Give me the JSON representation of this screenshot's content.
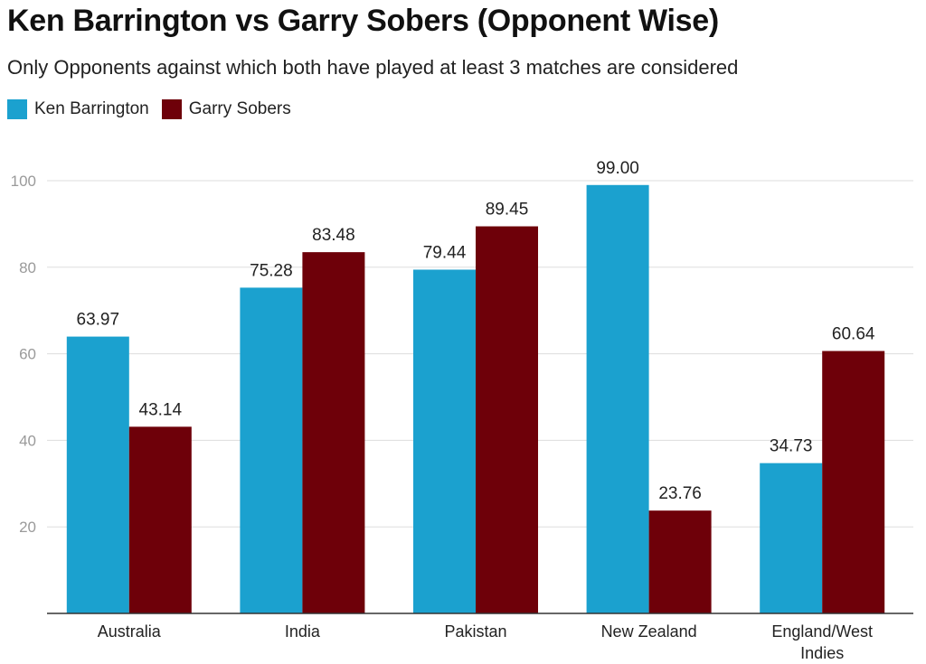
{
  "chart_data": {
    "type": "bar",
    "title": "Ken Barrington vs Garry Sobers (Opponent Wise)",
    "subtitle": "Only Opponents against which both have played at least 3 matches are considered",
    "categories": [
      "Australia",
      "India",
      "Pakistan",
      "New Zealand",
      "England/West Indies"
    ],
    "category_lines": [
      [
        "Australia"
      ],
      [
        "India"
      ],
      [
        "Pakistan"
      ],
      [
        "New Zealand"
      ],
      [
        "England/West",
        "Indies"
      ]
    ],
    "series": [
      {
        "name": "Ken Barrington",
        "color": "#1ba1cf",
        "values": [
          63.97,
          75.28,
          79.44,
          99.0,
          34.73
        ]
      },
      {
        "name": "Garry Sobers",
        "color": "#6e0009",
        "values": [
          43.14,
          83.48,
          89.45,
          23.76,
          60.64
        ]
      }
    ],
    "yticks": [
      20,
      40,
      60,
      80,
      100
    ],
    "ylim": [
      0,
      100
    ],
    "grid": true,
    "legend_position": "top-left",
    "xlabel": "",
    "ylabel": ""
  }
}
